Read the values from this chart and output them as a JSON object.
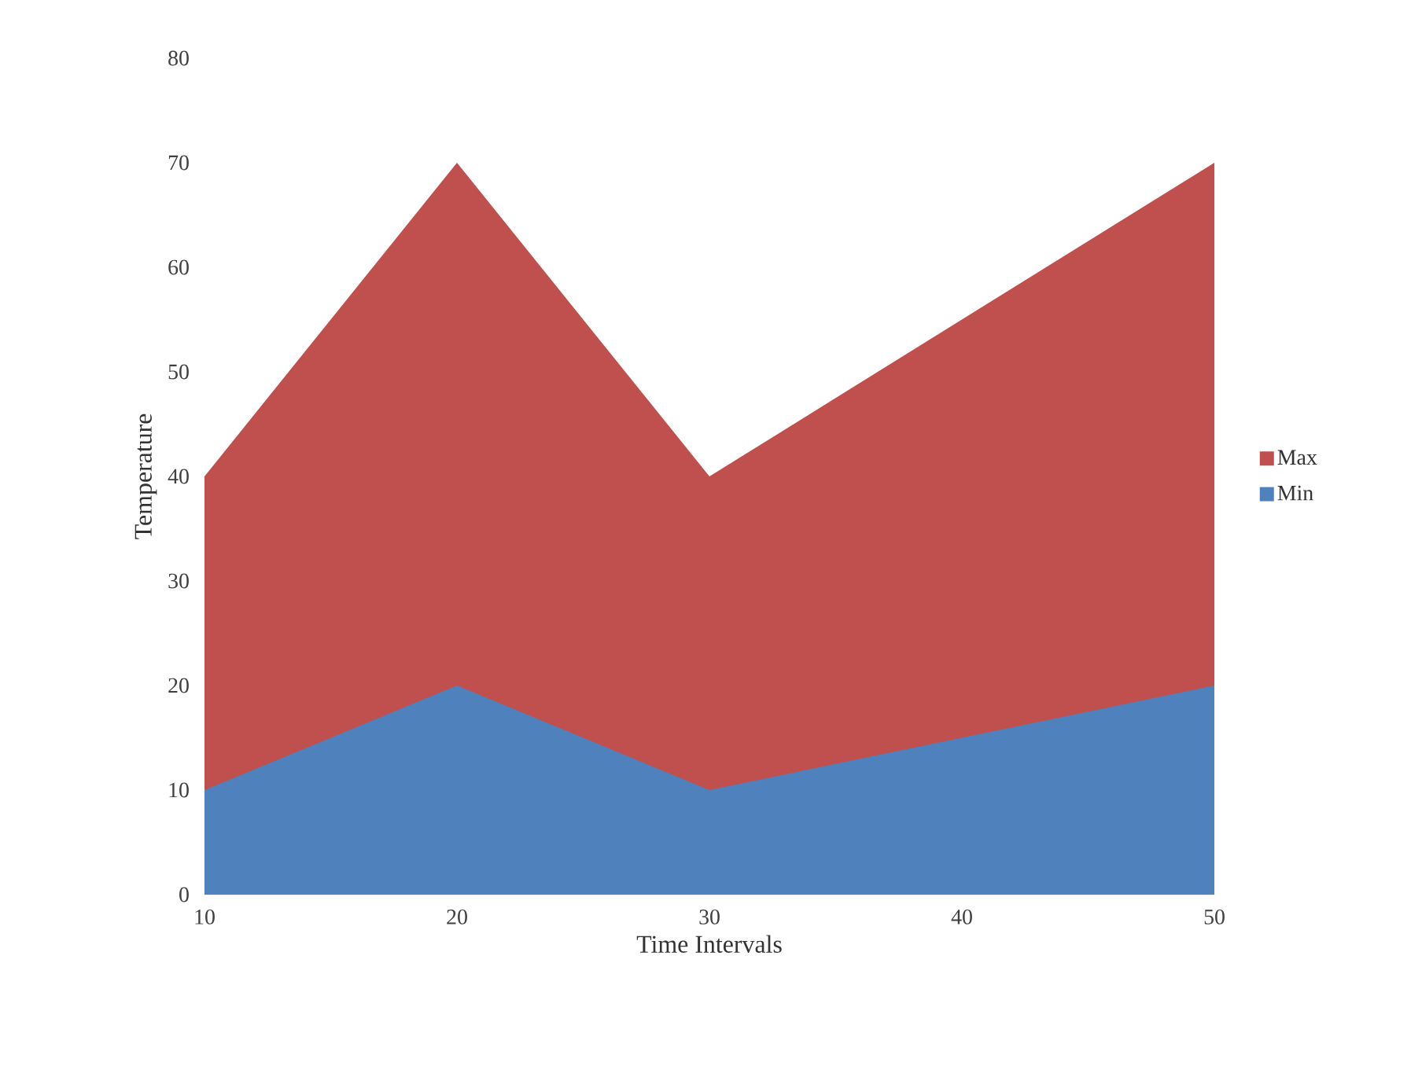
{
  "chart_data": {
    "type": "area",
    "xlabel": "Time Intervals",
    "ylabel": "Temperature",
    "categories": [
      "10",
      "20",
      "30",
      "40",
      "50"
    ],
    "series": [
      {
        "name": "Max",
        "color": "#c0504d",
        "values": [
          40,
          70,
          40,
          55,
          70
        ]
      },
      {
        "name": "Min",
        "color": "#4f81bd",
        "values": [
          10,
          20,
          10,
          15,
          20
        ]
      }
    ],
    "ylim": [
      0,
      80
    ],
    "yticks": [
      0,
      10,
      20,
      30,
      40,
      50,
      60,
      70,
      80
    ],
    "grid": false,
    "legend": "right"
  }
}
